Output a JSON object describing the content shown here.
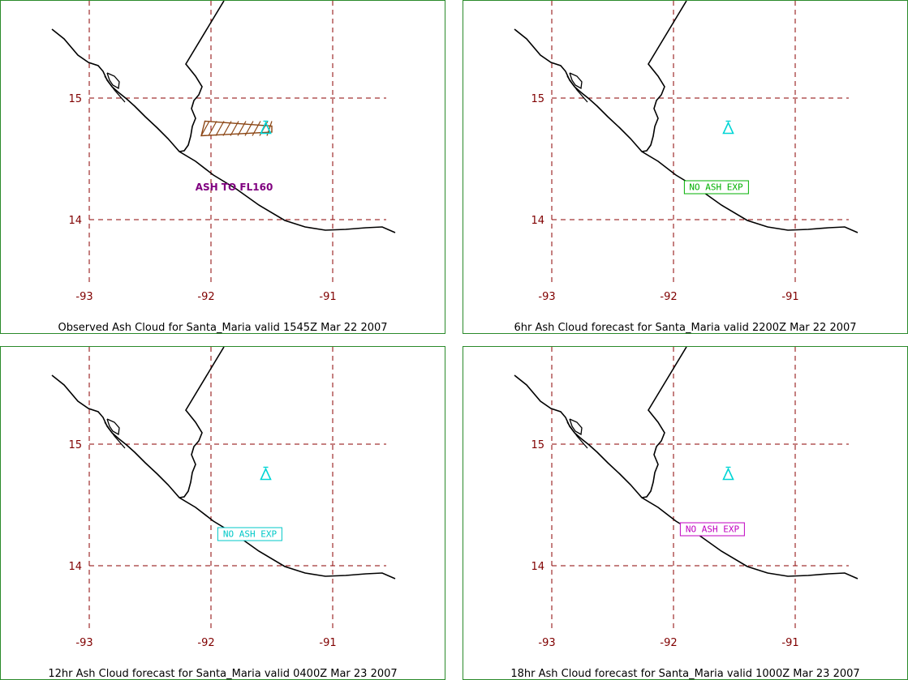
{
  "map": {
    "lat_ticks": [
      15,
      14
    ],
    "lon_ticks": [
      -93,
      -92,
      -91
    ],
    "grid_color": "#8b0000",
    "label_color": "#800000",
    "coast_color": "#000000",
    "volcano": {
      "name": "Santa_Maria",
      "lat": 14.75,
      "lon": -91.55,
      "color": "#00d5d5",
      "icon": "volcano-triangle-icon"
    }
  },
  "panels": [
    {
      "title": "Observed Ash Cloud for Santa_Maria valid 1545Z Mar 22 2007",
      "note": {
        "text": "ASH TO FL160",
        "style": "plain",
        "color": "#800080",
        "lat": 14.27,
        "lon": -91.81
      },
      "ash_cloud": {
        "color": "#8b4513",
        "polygon": [
          [
            14.81,
            -92.05
          ],
          [
            14.77,
            -91.5
          ],
          [
            14.72,
            -91.5
          ],
          [
            14.69,
            -92.08
          ]
        ]
      }
    },
    {
      "title": "6hr Ash Cloud forecast for Santa_Maria valid 2200Z Mar 22 2007",
      "note": {
        "text": "NO ASH EXP",
        "style": "box",
        "color": "#00b000",
        "lat": 14.27,
        "lon": -91.65
      }
    },
    {
      "title": "12hr Ash Cloud forecast for Santa_Maria valid 0400Z Mar 23 2007",
      "note": {
        "text": "NO ASH EXP",
        "style": "box",
        "color": "#00c8c8",
        "lat": 14.26,
        "lon": -91.68
      }
    },
    {
      "title": "18hr Ash Cloud forecast for Santa_Maria valid 1000Z Mar 23 2007",
      "note": {
        "text": "NO ASH EXP",
        "style": "box",
        "color": "#c000c0",
        "lat": 14.3,
        "lon": -91.68
      }
    }
  ]
}
